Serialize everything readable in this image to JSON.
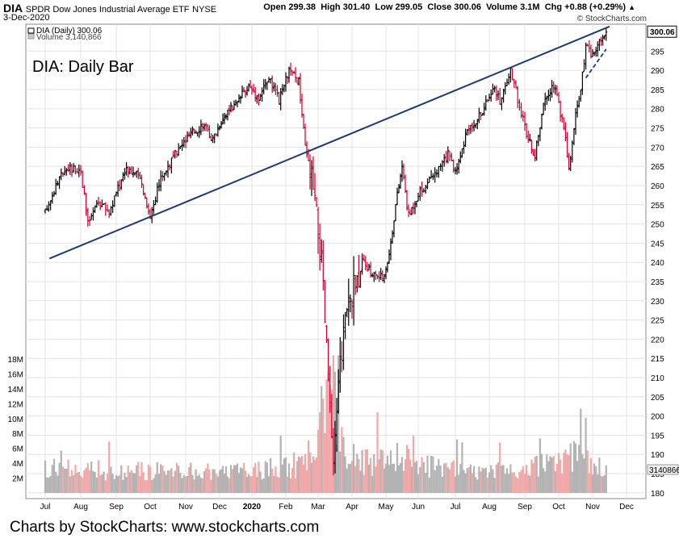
{
  "header": {
    "symbol": "DIA",
    "name": "SPDR Dow Jones Industrial Average ETF",
    "exchange": "NYSE",
    "date": "3-Dec-2020",
    "open_label": "Open",
    "open": "299.38",
    "high_label": "High",
    "high": "301.40",
    "low_label": "Low",
    "low": "299.05",
    "close_label": "Close",
    "close": "300.06",
    "volume_label": "Volume",
    "volume": "3.1M",
    "chg_label": "Chg",
    "chg": "+0.88 (+0.29%)",
    "chg_arrow": "▲",
    "brand": "© StockCharts.com"
  },
  "footer": "Charts by StockCharts:  www.stockcharts.com",
  "chart_data": {
    "type": "bar",
    "title": "DIA:  Daily Bar",
    "legend": [
      "DIA (Daily) 300.06",
      "Volume 3,140,866"
    ],
    "last_price_label": "300.06",
    "last_volume_label": "3140866",
    "months": [
      "Jul",
      "Aug",
      "Sep",
      "Oct",
      "Nov",
      "Dec",
      "2020",
      "Feb",
      "Mar",
      "Apr",
      "May",
      "Jun",
      "Jul",
      "Aug",
      "Sep",
      "Oct",
      "Nov",
      "Dec"
    ],
    "price_ticks": [
      180,
      185,
      190,
      195,
      200,
      205,
      210,
      215,
      220,
      225,
      230,
      235,
      240,
      245,
      250,
      255,
      260,
      265,
      270,
      275,
      280,
      285,
      290,
      295
    ],
    "volume_ticks": [
      "2M",
      "4M",
      "6M",
      "8M",
      "10M",
      "12M",
      "14M",
      "16M",
      "18M"
    ],
    "price_range": [
      178.5,
      302
    ],
    "volume_range": [
      0,
      20
    ],
    "colors": {
      "up": "#000000",
      "down": "#cc0033",
      "vol_up": "#b3b3b3",
      "vol_down": "#f0a8a8",
      "trend": "#1f3a6b",
      "grid": "#e3e3e3"
    },
    "anchors": [
      {
        "m": 0,
        "p": 253
      },
      {
        "m": 0.3,
        "p": 260
      },
      {
        "m": 0.6,
        "p": 265
      },
      {
        "m": 1.0,
        "p": 264
      },
      {
        "m": 1.2,
        "p": 250
      },
      {
        "m": 1.5,
        "p": 256
      },
      {
        "m": 1.8,
        "p": 253
      },
      {
        "m": 2.0,
        "p": 258
      },
      {
        "m": 2.3,
        "p": 265
      },
      {
        "m": 2.7,
        "p": 262
      },
      {
        "m": 3.0,
        "p": 252
      },
      {
        "m": 3.3,
        "p": 262
      },
      {
        "m": 3.7,
        "p": 268
      },
      {
        "m": 4.1,
        "p": 273
      },
      {
        "m": 4.5,
        "p": 276
      },
      {
        "m": 4.8,
        "p": 272
      },
      {
        "m": 5.1,
        "p": 278
      },
      {
        "m": 5.5,
        "p": 281
      },
      {
        "m": 5.9,
        "p": 286
      },
      {
        "m": 6.2,
        "p": 283
      },
      {
        "m": 6.5,
        "p": 288
      },
      {
        "m": 6.8,
        "p": 282
      },
      {
        "m": 7.1,
        "p": 290
      },
      {
        "m": 7.4,
        "p": 287
      },
      {
        "m": 7.6,
        "p": 270
      },
      {
        "m": 7.8,
        "p": 262
      },
      {
        "m": 7.95,
        "p": 252
      },
      {
        "m": 8.1,
        "p": 240
      },
      {
        "m": 8.2,
        "p": 225
      },
      {
        "m": 8.3,
        "p": 210
      },
      {
        "m": 8.45,
        "p": 185
      },
      {
        "m": 8.6,
        "p": 210
      },
      {
        "m": 8.8,
        "p": 225
      },
      {
        "m": 9.0,
        "p": 232
      },
      {
        "m": 9.3,
        "p": 240
      },
      {
        "m": 9.6,
        "p": 237
      },
      {
        "m": 9.9,
        "p": 236
      },
      {
        "m": 10.1,
        "p": 242
      },
      {
        "m": 10.3,
        "p": 255
      },
      {
        "m": 10.5,
        "p": 265
      },
      {
        "m": 10.7,
        "p": 252
      },
      {
        "m": 11.0,
        "p": 258
      },
      {
        "m": 11.4,
        "p": 262
      },
      {
        "m": 11.8,
        "p": 268
      },
      {
        "m": 12.0,
        "p": 264
      },
      {
        "m": 12.4,
        "p": 275
      },
      {
        "m": 12.8,
        "p": 279
      },
      {
        "m": 13.1,
        "p": 286
      },
      {
        "m": 13.3,
        "p": 282
      },
      {
        "m": 13.6,
        "p": 290
      },
      {
        "m": 13.9,
        "p": 279
      },
      {
        "m": 14.1,
        "p": 272
      },
      {
        "m": 14.3,
        "p": 268
      },
      {
        "m": 14.6,
        "p": 283
      },
      {
        "m": 14.9,
        "p": 286
      },
      {
        "m": 15.2,
        "p": 272
      },
      {
        "m": 15.3,
        "p": 264
      },
      {
        "m": 15.5,
        "p": 278
      },
      {
        "m": 15.65,
        "p": 285
      },
      {
        "m": 15.8,
        "p": 296
      },
      {
        "m": 16.0,
        "p": 294
      },
      {
        "m": 16.2,
        "p": 297
      },
      {
        "m": 16.4,
        "p": 300
      }
    ],
    "volume_anchors": [
      {
        "m": 0,
        "v": 3.2
      },
      {
        "m": 2.0,
        "v": 3.0
      },
      {
        "m": 4.0,
        "v": 2.8
      },
      {
        "m": 6.0,
        "v": 3.0
      },
      {
        "m": 7.5,
        "v": 3.5
      },
      {
        "m": 7.9,
        "v": 7
      },
      {
        "m": 8.2,
        "v": 12
      },
      {
        "m": 8.4,
        "v": 15
      },
      {
        "m": 8.6,
        "v": 10
      },
      {
        "m": 8.9,
        "v": 5
      },
      {
        "m": 9.5,
        "v": 4
      },
      {
        "m": 10.5,
        "v": 5
      },
      {
        "m": 11.0,
        "v": 4
      },
      {
        "m": 12.0,
        "v": 3
      },
      {
        "m": 14.0,
        "v": 3
      },
      {
        "m": 15.3,
        "v": 5
      },
      {
        "m": 16.4,
        "v": 3
      }
    ],
    "trendline": {
      "start": {
        "m": 0.12,
        "p": 241
      },
      "end": {
        "m": 16.5,
        "p": 301.4
      }
    },
    "dashed_support": {
      "start": {
        "m": 15.8,
        "p": 288
      },
      "end": {
        "m": 16.4,
        "p": 295.5
      }
    }
  }
}
